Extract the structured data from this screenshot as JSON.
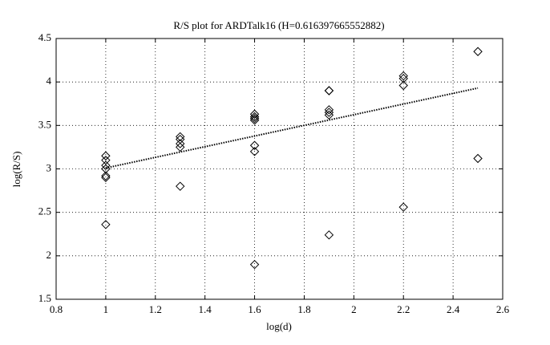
{
  "chart_data": {
    "type": "scatter",
    "title": "R/S plot for ARDTalk16 (H=0.616397665552882)",
    "x_label": "log(d)",
    "y_label": "log(R/S)",
    "xlim": [
      0.8,
      2.6
    ],
    "xticks": [
      0.8,
      1,
      1.2,
      1.4,
      1.6,
      1.8,
      2,
      2.2,
      2.4,
      2.6
    ],
    "ylim": [
      1.5,
      4.5
    ],
    "yticks": [
      1.5,
      2,
      2.5,
      3,
      3.5,
      4,
      4.5
    ],
    "grid": true,
    "marker": "diamond",
    "color": "#000000",
    "series": [
      {
        "color": "#000000",
        "x": [
          1,
          1,
          1,
          1,
          1,
          1,
          1,
          1.3,
          1.3,
          1.3,
          1.3,
          1.3,
          1.6,
          1.6,
          1.6,
          1.6,
          1.6,
          1.6,
          1.6,
          1.9,
          1.9,
          1.9,
          1.9,
          1.9,
          1.9,
          2.2,
          2.2,
          2.2,
          2.2,
          2.5,
          2.5
        ],
        "values": [
          3.15,
          3.1,
          3.04,
          3.0,
          2.92,
          2.9,
          2.36,
          3.37,
          3.34,
          3.29,
          3.25,
          2.8,
          3.63,
          3.6,
          3.58,
          3.56,
          3.27,
          3.2,
          1.9,
          3.9,
          3.9,
          3.68,
          3.65,
          3.62,
          2.24,
          4.07,
          4.04,
          3.96,
          2.56,
          4.35,
          3.12
        ]
      }
    ],
    "fit": {
      "color": "#000000",
      "x": [
        1,
        2.5
      ],
      "values": [
        3.01,
        3.93
      ]
    }
  }
}
